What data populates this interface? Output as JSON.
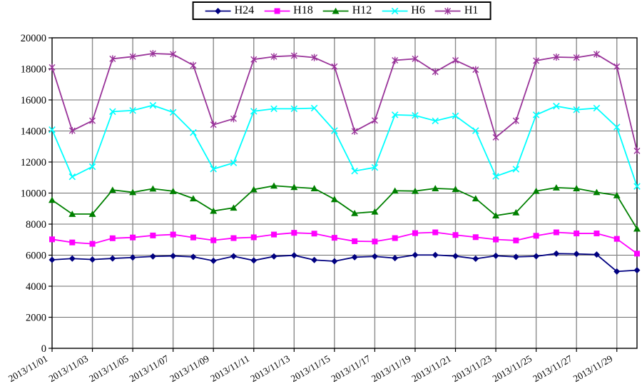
{
  "colors": {
    "background": "#ffffff",
    "plot_border": "#000000",
    "grid_horizontal": "#6e6e6e",
    "grid_vertical": "#8c8c8c",
    "axis_text": "#000000",
    "legend_border": "#000000"
  },
  "legend": {
    "position": "top-center",
    "items": [
      "H24",
      "H18",
      "H12",
      "H6",
      "H1"
    ]
  },
  "chart_data": {
    "type": "line",
    "title": "",
    "xlabel": "",
    "ylabel": "",
    "ylim": [
      0,
      20000
    ],
    "y_tick_step": 2000,
    "y_tick_labels": [
      "0",
      "2000",
      "4000",
      "6000",
      "8000",
      "10000",
      "12000",
      "14000",
      "16000",
      "18000",
      "20000"
    ],
    "x": [
      "2013/11/01",
      "2013/11/02",
      "2013/11/03",
      "2013/11/04",
      "2013/11/05",
      "2013/11/06",
      "2013/11/07",
      "2013/11/08",
      "2013/11/09",
      "2013/11/10",
      "2013/11/11",
      "2013/11/12",
      "2013/11/13",
      "2013/11/14",
      "2013/11/15",
      "2013/11/16",
      "2013/11/17",
      "2013/11/18",
      "2013/11/19",
      "2013/11/20",
      "2013/11/21",
      "2013/11/22",
      "2013/11/23",
      "2013/11/24",
      "2013/11/25",
      "2013/11/26",
      "2013/11/27",
      "2013/11/28",
      "2013/11/29",
      "2013/11/30"
    ],
    "x_tick_labels": [
      "2013/11/01",
      "2013/11/03",
      "2013/11/05",
      "2013/11/07",
      "2013/11/09",
      "2013/11/11",
      "2013/11/13",
      "2013/11/15",
      "2013/11/17",
      "2013/11/19",
      "2013/11/21",
      "2013/11/23",
      "2013/11/25",
      "2013/11/27",
      "2013/11/29"
    ],
    "grid": "both",
    "legend_position": "top-center",
    "series": [
      {
        "name": "H24",
        "color": "#000080",
        "marker": "diamond",
        "values": [
          5700,
          5780,
          5720,
          5790,
          5850,
          5920,
          5950,
          5890,
          5640,
          5930,
          5660,
          5920,
          5990,
          5690,
          5610,
          5870,
          5920,
          5810,
          6010,
          6010,
          5940,
          5770,
          5960,
          5890,
          5930,
          6100,
          6080,
          6040,
          4950,
          5030
        ]
      },
      {
        "name": "H18",
        "color": "#FF00FF",
        "marker": "square",
        "values": [
          7020,
          6820,
          6730,
          7090,
          7140,
          7270,
          7330,
          7140,
          6960,
          7100,
          7150,
          7330,
          7440,
          7390,
          7120,
          6900,
          6880,
          7100,
          7420,
          7470,
          7300,
          7160,
          7010,
          6950,
          7250,
          7470,
          7400,
          7400,
          7050,
          6100
        ]
      },
      {
        "name": "H12",
        "color": "#008000",
        "marker": "triangle",
        "values": [
          9550,
          8650,
          8650,
          10200,
          10050,
          10280,
          10120,
          9650,
          8850,
          9050,
          10230,
          10470,
          10380,
          10300,
          9600,
          8700,
          8800,
          10150,
          10130,
          10300,
          10250,
          9650,
          8550,
          8750,
          10130,
          10350,
          10300,
          10050,
          9850,
          7700
        ]
      },
      {
        "name": "H6",
        "color": "#00FFFF",
        "marker": "x",
        "values": [
          14080,
          11050,
          11700,
          15250,
          15320,
          15650,
          15200,
          13900,
          11550,
          11950,
          15270,
          15430,
          15430,
          15470,
          14020,
          11420,
          11650,
          15040,
          15000,
          14650,
          14970,
          14020,
          11080,
          11540,
          15040,
          15600,
          15370,
          15470,
          14250,
          10430
        ]
      },
      {
        "name": "H1",
        "color": "#993399",
        "marker": "star",
        "values": [
          18100,
          14020,
          14660,
          18650,
          18790,
          18990,
          18940,
          18230,
          14400,
          14790,
          18610,
          18790,
          18850,
          18730,
          18150,
          13980,
          14680,
          18550,
          18650,
          17810,
          18550,
          17950,
          13590,
          14660,
          18530,
          18760,
          18730,
          18940,
          18150,
          12720
        ]
      }
    ]
  }
}
